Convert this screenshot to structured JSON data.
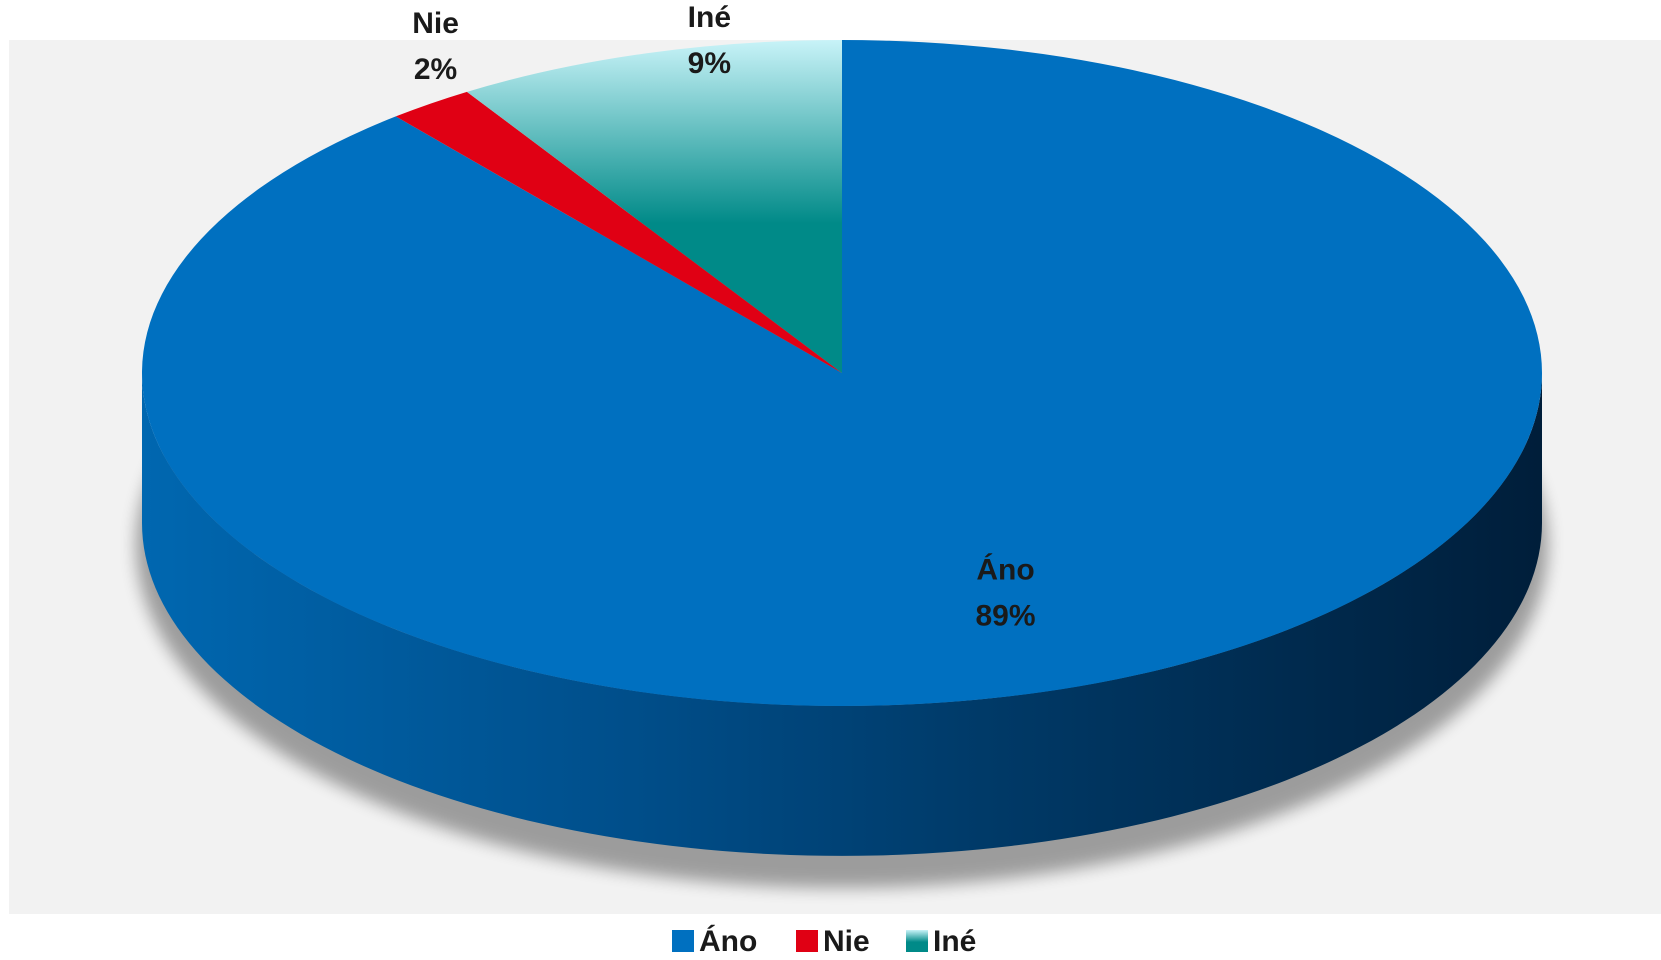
{
  "chart_data": {
    "type": "pie",
    "style": "3d",
    "title": "",
    "slices": [
      {
        "label": "Ano",
        "display_label": "Áno",
        "value": 89,
        "pct_label": "89%",
        "color": "#0070C0",
        "side_dark": "#00284A"
      },
      {
        "label": "Nie",
        "display_label": "Nie",
        "value": 2,
        "pct_label": "2%",
        "color": "#E00014",
        "side_dark": "#7A0009"
      },
      {
        "label": "Ine",
        "display_label": "Iné",
        "value": 9,
        "pct_label": "9%",
        "color": "#008A88",
        "color_light": "#BDEFF5",
        "side_dark": "#004A48"
      }
    ],
    "legend": {
      "position": "bottom",
      "entries": [
        "Áno",
        "Nie",
        "Iné"
      ]
    },
    "plot_background": "#F2F2F2"
  }
}
